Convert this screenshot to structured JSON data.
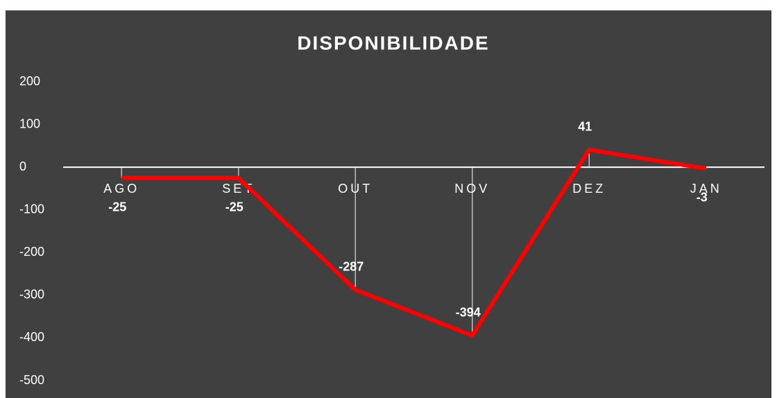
{
  "chart_data": {
    "type": "line",
    "title": "DISPONIBILIDADE",
    "categories": [
      "AGO",
      "SET",
      "OUT",
      "NOV",
      "DEZ",
      "JAN"
    ],
    "values": [
      -25,
      -25,
      -287,
      -394,
      41,
      -3
    ],
    "color": "#ff0000",
    "ylim": [
      -500,
      200
    ],
    "yticks": [
      200,
      100,
      0,
      -100,
      -200,
      -300,
      -400,
      -500
    ],
    "grid": false
  }
}
